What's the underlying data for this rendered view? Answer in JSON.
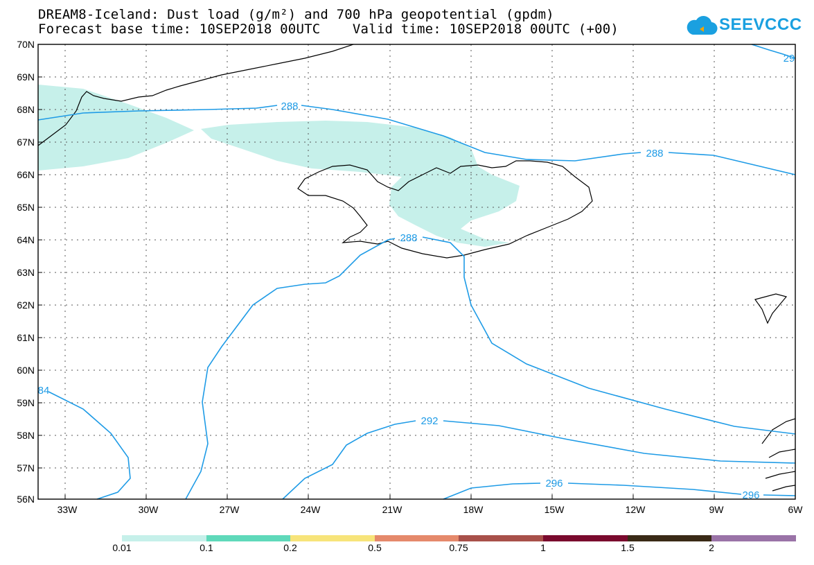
{
  "header": {
    "title_line1": "DREAM8-Iceland: Dust load (g/m²) and 700 hPa geopotential (gpdm)",
    "title_line2": "Forecast base time: 10SEP2018 00UTC    Valid time: 10SEP2018 00UTC (+00)"
  },
  "logo": {
    "text": "SEEVCCC",
    "icon": "cloud-icon"
  },
  "map": {
    "projection": "lat-lon",
    "lon_range": [
      -34,
      -6
    ],
    "lat_range": [
      56,
      70
    ],
    "grid": true,
    "lat_labels": [
      "70N",
      "69N",
      "68N",
      "67N",
      "66N",
      "65N",
      "64N",
      "63N",
      "62N",
      "61N",
      "60N",
      "59N",
      "58N",
      "57N",
      "56N"
    ],
    "lon_labels": [
      "33W",
      "30W",
      "27W",
      "24W",
      "21W",
      "18W",
      "15W",
      "12W",
      "9W",
      "6W"
    ],
    "contour_labels": [
      "288",
      "288",
      "288",
      "292",
      "296",
      "296",
      "29",
      "84"
    ],
    "dust_color": "#c6f0ea",
    "contour_color": "#1e9be6",
    "coast_color": "#000000"
  },
  "colorbar": {
    "labels": [
      "0.01",
      "0.1",
      "0.2",
      "0.5",
      "0.75",
      "1",
      "1.5",
      "2"
    ],
    "colors": [
      "#c6f0ea",
      "#5fd9ba",
      "#f7e47a",
      "#e5896b",
      "#a8504a",
      "#7a0a2e",
      "#3a2a16",
      "#9a73a7"
    ]
  }
}
